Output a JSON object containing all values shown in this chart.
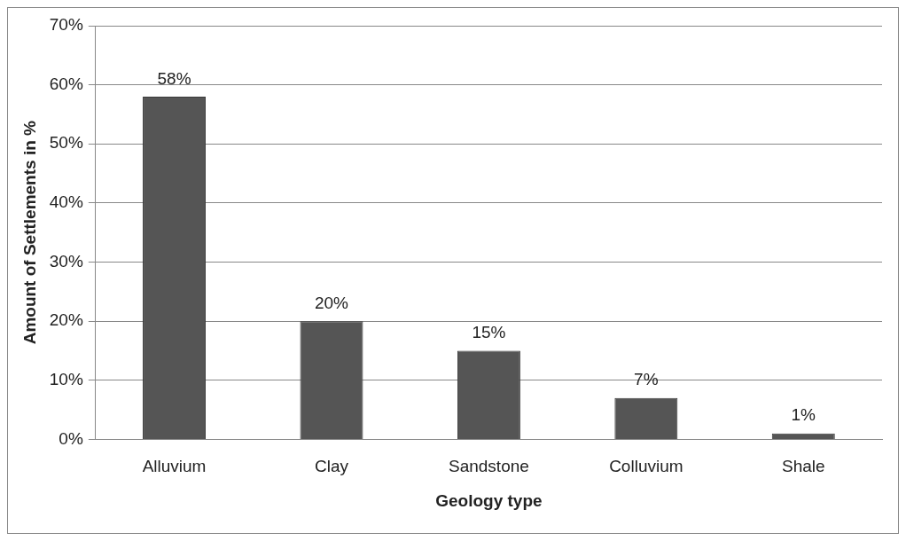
{
  "chart_data": {
    "type": "bar",
    "xlabel": "Geology type",
    "ylabel": "Amount of Settlements in %",
    "categories": [
      "Alluvium",
      "Clay",
      "Sandstone",
      "Colluvium",
      "Shale"
    ],
    "values": [
      58,
      20,
      15,
      7,
      1
    ],
    "color": "#555555",
    "value_labels": [
      "58%",
      "20%",
      "15%",
      "7%",
      "1%"
    ],
    "ylim": [
      0,
      70
    ],
    "yticks": [
      {
        "value": 0,
        "label": "0%"
      },
      {
        "value": 10,
        "label": "10%"
      },
      {
        "value": 20,
        "label": "20%"
      },
      {
        "value": 30,
        "label": "30%"
      },
      {
        "value": 40,
        "label": "40%"
      },
      {
        "value": 50,
        "label": "50%"
      },
      {
        "value": 60,
        "label": "60%"
      },
      {
        "value": 70,
        "label": "70%"
      }
    ],
    "grid": "y",
    "legend": false
  }
}
